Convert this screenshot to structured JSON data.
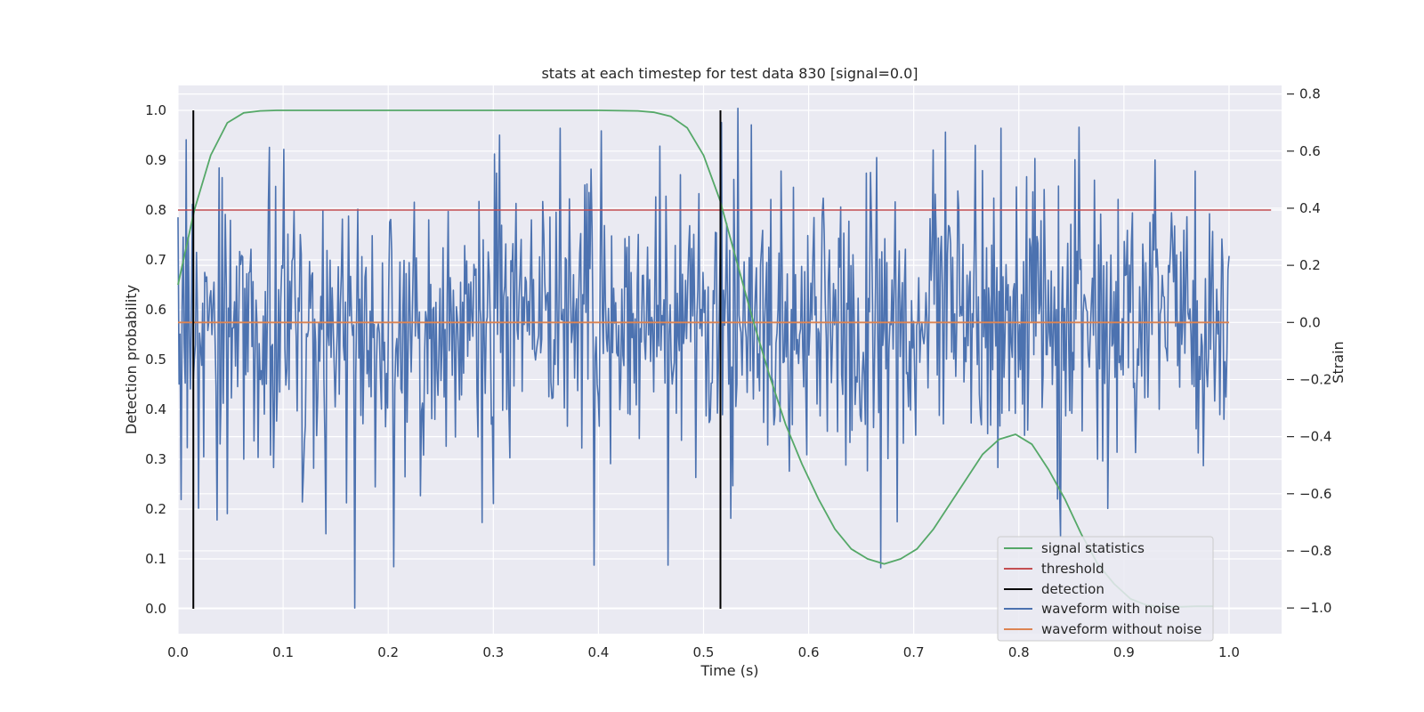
{
  "chart_data": {
    "type": "line",
    "title": "stats at each timestep for test data 830 [signal=0.0]",
    "xlabel": "Time (s)",
    "ylabel": "Detection probability",
    "y2label": "Strain",
    "xlim": [
      0.0,
      1.05
    ],
    "ylim": [
      -0.05,
      1.05
    ],
    "y2lim": [
      -1.09,
      0.83
    ],
    "x_ticks": [
      "0.0",
      "0.1",
      "0.2",
      "0.3",
      "0.4",
      "0.5",
      "0.6",
      "0.7",
      "0.8",
      "0.9",
      "1.0"
    ],
    "y_ticks": [
      "0.0",
      "0.1",
      "0.2",
      "0.3",
      "0.4",
      "0.5",
      "0.6",
      "0.7",
      "0.8",
      "0.9",
      "1.0"
    ],
    "y2_ticks": [
      "−1.0",
      "−0.8",
      "−0.6",
      "−0.4",
      "−0.2",
      "0.0",
      "0.2",
      "0.4",
      "0.6",
      "0.8"
    ],
    "grid": true,
    "legend_position": "lower-right",
    "colors": {
      "signal": "#55a868",
      "threshold": "#c44e52",
      "detection": "#000000",
      "noise": "#4c72b0",
      "clean": "#dd8452",
      "background": "#eaeaf2",
      "grid": "#ffffff"
    },
    "series": [
      {
        "name": "signal statistics",
        "axis": "left",
        "x": [
          0.0,
          0.0156,
          0.0312,
          0.0469,
          0.0625,
          0.0781,
          0.0938,
          0.1094,
          0.125,
          0.15,
          0.2,
          0.25,
          0.3,
          0.35,
          0.4,
          0.4375,
          0.4531,
          0.4688,
          0.4844,
          0.5,
          0.5156,
          0.5312,
          0.5469,
          0.5625,
          0.5781,
          0.5938,
          0.6094,
          0.625,
          0.6406,
          0.6562,
          0.6719,
          0.6875,
          0.7031,
          0.7188,
          0.7344,
          0.75,
          0.7656,
          0.7812,
          0.7969,
          0.8125,
          0.8281,
          0.8438,
          0.8594,
          0.875,
          0.8906,
          0.9062,
          0.9219,
          0.9375,
          0.9531,
          0.9688,
          0.9844
        ],
        "values": [
          0.65,
          0.8,
          0.91,
          0.975,
          0.995,
          0.999,
          1.0,
          1.0,
          1.0,
          1.0,
          1.0,
          1.0,
          1.0,
          1.0,
          1.0,
          0.999,
          0.996,
          0.988,
          0.965,
          0.91,
          0.82,
          0.7,
          0.58,
          0.47,
          0.37,
          0.29,
          0.22,
          0.16,
          0.12,
          0.1,
          0.09,
          0.1,
          0.12,
          0.16,
          0.21,
          0.26,
          0.31,
          0.34,
          0.35,
          0.33,
          0.28,
          0.22,
          0.15,
          0.09,
          0.05,
          0.02,
          0.007,
          0.004,
          0.004,
          0.005,
          0.005
        ]
      },
      {
        "name": "threshold",
        "axis": "left",
        "x": [
          0.0,
          1.04
        ],
        "values": [
          0.8,
          0.8
        ]
      },
      {
        "name": "detection",
        "axis": "left",
        "x_positions": [
          0.0146,
          0.5161
        ],
        "values": [
          0.0,
          1.0
        ]
      },
      {
        "name": "waveform with noise",
        "axis": "right",
        "x_range": [
          0.0,
          1.0
        ],
        "n_points": 1024,
        "y_approx_range": [
          -1.0,
          0.75
        ],
        "notable_points": [
          {
            "x": 0.168,
            "y": -1.0
          },
          {
            "x": 0.533,
            "y": 0.75
          },
          {
            "x": 0.517,
            "y": 0.7
          },
          {
            "x": 0.008,
            "y": 0.64
          },
          {
            "x": 0.364,
            "y": 0.68
          },
          {
            "x": 0.783,
            "y": 0.68
          },
          {
            "x": 0.141,
            "y": -0.74
          },
          {
            "x": 0.396,
            "y": -0.85
          },
          {
            "x": 0.466,
            "y": -0.85
          },
          {
            "x": 0.84,
            "y": -0.75
          }
        ]
      },
      {
        "name": "waveform without noise",
        "axis": "right",
        "x": [
          0.0,
          1.0
        ],
        "values": [
          0.0,
          0.0
        ]
      }
    ],
    "legend": [
      "signal statistics",
      "threshold",
      "detection",
      "waveform with noise",
      "waveform without noise"
    ]
  }
}
